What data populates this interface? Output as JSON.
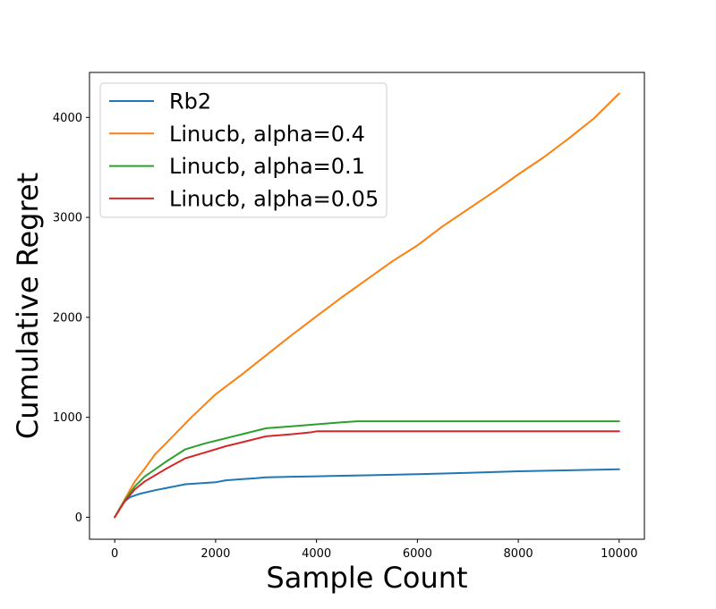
{
  "chart_data": {
    "type": "line",
    "title": "",
    "xlabel": "Sample Count",
    "ylabel": "Cumulative Regret",
    "xlim": [
      -500,
      10500
    ],
    "ylim": [
      -220,
      4450
    ],
    "xticks": [
      0,
      2000,
      4000,
      6000,
      8000,
      10000
    ],
    "yticks": [
      0,
      1000,
      2000,
      3000,
      4000
    ],
    "grid": false,
    "legend_position": "top-left",
    "series": [
      {
        "name": "Rb2",
        "color": "#1f77b4",
        "x": [
          0,
          100,
          200,
          300,
          500,
          800,
          1000,
          1400,
          2000,
          2200,
          2500,
          2800,
          3000,
          3500,
          4000,
          4500,
          5000,
          6000,
          7000,
          8000,
          9000,
          10000
        ],
        "y": [
          0,
          90,
          160,
          200,
          235,
          270,
          290,
          330,
          350,
          370,
          380,
          390,
          400,
          405,
          410,
          415,
          420,
          430,
          445,
          460,
          470,
          480
        ]
      },
      {
        "name": "Linucb, alpha=0.4",
        "color": "#ff7f0e",
        "x": [
          0,
          200,
          400,
          600,
          800,
          1000,
          1500,
          2000,
          2500,
          3000,
          3500,
          4000,
          4500,
          5000,
          5500,
          6000,
          6500,
          7000,
          7500,
          8000,
          8500,
          9000,
          9500,
          10000
        ],
        "y": [
          0,
          180,
          360,
          490,
          630,
          730,
          990,
          1230,
          1420,
          1620,
          1820,
          2010,
          2200,
          2380,
          2560,
          2720,
          2910,
          3080,
          3250,
          3430,
          3600,
          3790,
          3990,
          4240
        ]
      },
      {
        "name": "Linucb, alpha=0.1",
        "color": "#2ca02c",
        "x": [
          0,
          200,
          400,
          600,
          800,
          1000,
          1400,
          1800,
          2200,
          2600,
          3000,
          3500,
          4000,
          4500,
          4800,
          5000,
          6000,
          7000,
          8000,
          9000,
          10000
        ],
        "y": [
          0,
          170,
          310,
          410,
          480,
          550,
          680,
          740,
          790,
          840,
          890,
          910,
          930,
          950,
          960,
          960,
          960,
          960,
          960,
          960,
          960
        ]
      },
      {
        "name": "Linucb, alpha=0.05",
        "color": "#d62728",
        "x": [
          0,
          200,
          400,
          600,
          800,
          1000,
          1400,
          1800,
          2200,
          2600,
          3000,
          3500,
          3900,
          4000,
          5000,
          6000,
          7000,
          8000,
          9000,
          10000
        ],
        "y": [
          0,
          160,
          280,
          360,
          420,
          480,
          590,
          650,
          710,
          760,
          810,
          830,
          850,
          860,
          860,
          860,
          860,
          860,
          860,
          860
        ]
      }
    ]
  }
}
